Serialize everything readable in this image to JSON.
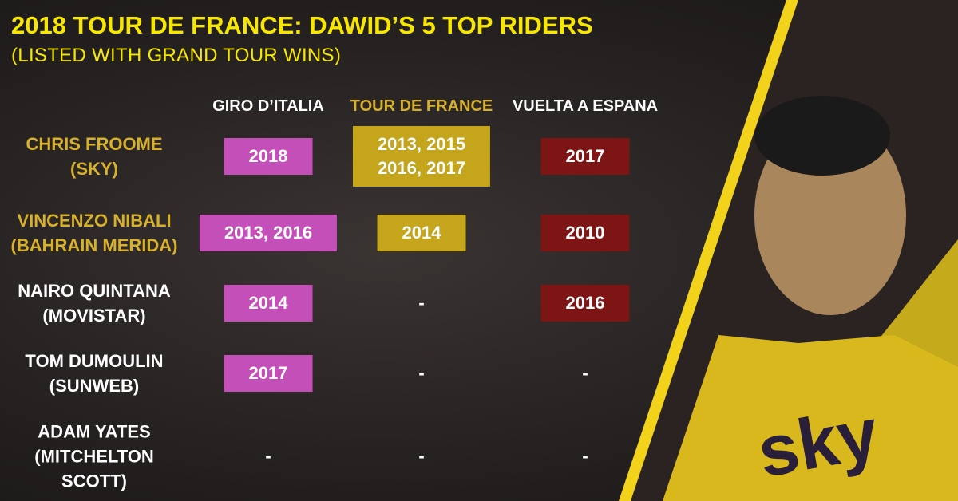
{
  "header": {
    "title": "2018 TOUR DE FRANCE: DAWID’S 5 TOP RIDERS",
    "subtitle": "(LISTED WITH GRAND TOUR WINS)"
  },
  "table": {
    "columns": [
      "GIRO D’ITALIA",
      "TOUR DE FRANCE",
      "VUELTA A ESPANA"
    ],
    "rows": [
      {
        "name": "CHRIS FROOME",
        "team": "(SKY)",
        "cells": [
          "2018",
          [
            "2013, 2015",
            "2016, 2017"
          ],
          "2017"
        ]
      },
      {
        "name": "VINCENZO NIBALI",
        "team": "(BAHRAIN MERIDA)",
        "cells": [
          "2013, 2016",
          "2014",
          "2010"
        ]
      },
      {
        "name": "NAIRO QUINTANA",
        "team": "(MOVISTAR)",
        "cells": [
          "2014",
          "-",
          "2016"
        ]
      },
      {
        "name": "TOM DUMOULIN",
        "team": "(SUNWEB)",
        "cells": [
          "2017",
          "-",
          "-"
        ]
      },
      {
        "name": "ADAM YATES",
        "team": "(MITCHELTON SCOTT)",
        "cells": [
          "-",
          "-",
          "-"
        ]
      }
    ]
  }
}
